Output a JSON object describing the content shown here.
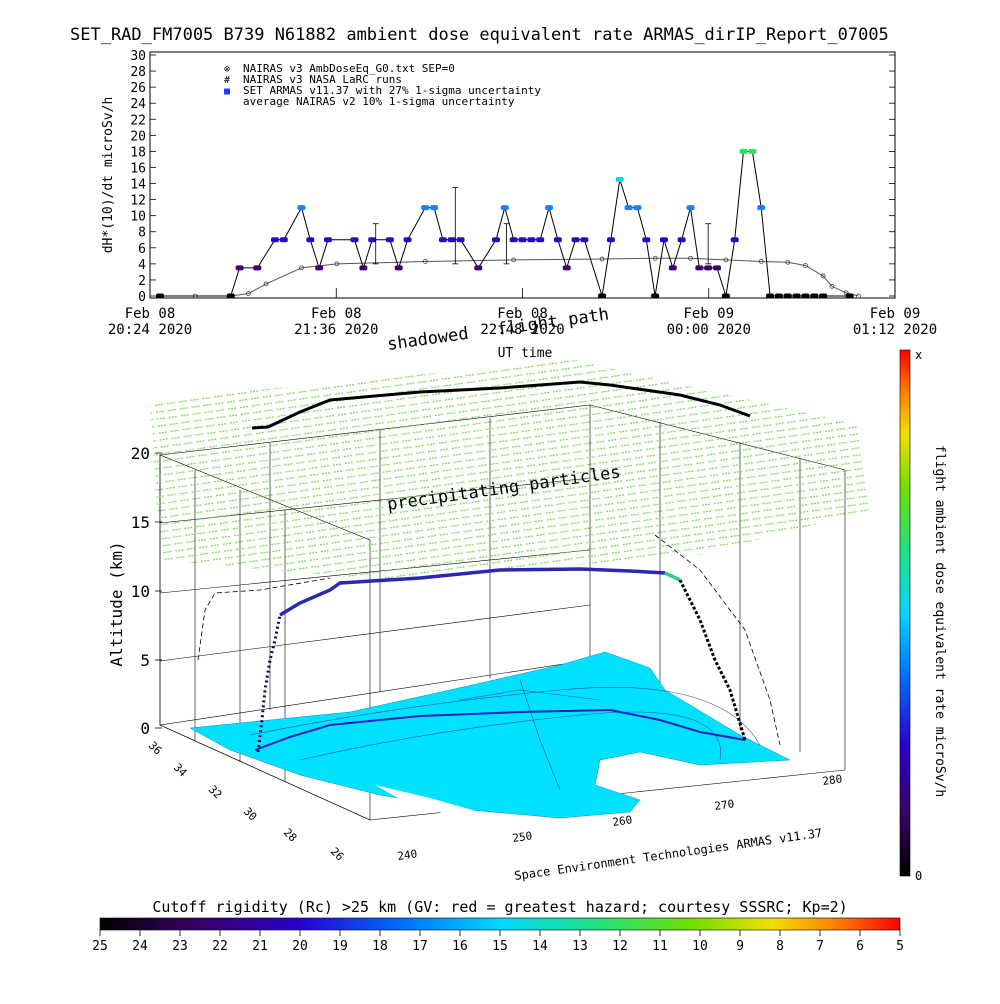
{
  "title": "SET_RAD_FM7005  B739 N61882 ambient dose equivalent rate ARMAS_dirIP_Report_07005",
  "top_chart": {
    "ylabel": "dH*(10)/dt microSv/h",
    "xlabel": "UT time",
    "yticks": [
      "0",
      "2",
      "4",
      "6",
      "8",
      "10",
      "12",
      "14",
      "16",
      "18",
      "20",
      "22",
      "24",
      "26",
      "28",
      "30"
    ],
    "xticks": [
      {
        "date": "Feb 08",
        "time": "20:24 2020"
      },
      {
        "date": "Feb 08",
        "time": "21:36 2020"
      },
      {
        "date": "Feb 08",
        "time": "22:48 2020"
      },
      {
        "date": "Feb 09",
        "time": "00:00 2020"
      },
      {
        "date": "Feb 09",
        "time": "01:12 2020"
      }
    ],
    "legend": [
      {
        "symbol": "⊗",
        "label": "NAIRAS v3 AmbDoseEq_G0.txt SEP=0"
      },
      {
        "symbol": "#",
        "label": "NAIRAS v3 NASA LaRC runs"
      },
      {
        "symbol": "■",
        "label": "SET ARMAS v11.37 with 27% 1-sigma uncertainty",
        "color": "#1a3fff"
      },
      {
        "symbol": "",
        "label": "average NAIRAS v2 10% 1-sigma uncertainty"
      }
    ],
    "chart_data": {
      "type": "line",
      "x_unit": "minutes after Feb 08 20:24 UT",
      "ylim": [
        0,
        30
      ],
      "series": [
        {
          "name": "NAIRAS v3 AmbDoseEq_G0.txt SEP=0",
          "x": [
            0,
            20,
            40,
            50,
            60,
            80,
            100,
            150,
            200,
            250,
            280,
            300,
            320,
            340,
            355,
            365,
            375,
            380,
            388,
            395
          ],
          "values": [
            0,
            0,
            0,
            0.3,
            1.5,
            3.5,
            4.0,
            4.3,
            4.5,
            4.6,
            4.7,
            4.7,
            4.5,
            4.3,
            4.2,
            3.8,
            2.5,
            1.2,
            0.4,
            0
          ]
        },
        {
          "name": "SET ARMAS v11.37 with 27% 1-sigma uncertainty",
          "x": [
            0,
            40,
            45,
            55,
            65,
            70,
            80,
            85,
            90,
            95,
            110,
            115,
            120,
            130,
            135,
            140,
            150,
            155,
            160,
            165,
            170,
            180,
            190,
            195,
            200,
            205,
            210,
            215,
            220,
            225,
            230,
            235,
            240,
            250,
            255,
            260,
            265,
            270,
            275,
            280,
            285,
            290,
            295,
            300,
            305,
            310,
            315,
            320,
            325,
            330,
            335,
            340,
            345,
            350,
            355,
            360,
            365,
            370,
            375,
            390
          ],
          "values": [
            0,
            0,
            3.5,
            3.5,
            7,
            7,
            11,
            7,
            3.5,
            7,
            7,
            3.5,
            7,
            7,
            3.5,
            7,
            11,
            11,
            7,
            7,
            7,
            3.5,
            7,
            11,
            7,
            7,
            7,
            7,
            11,
            7,
            3.5,
            7,
            7,
            0,
            7,
            14.5,
            11,
            11,
            7,
            0,
            7,
            3.5,
            7,
            11,
            3.5,
            3.5,
            3.5,
            0,
            7,
            18,
            18,
            11,
            0,
            0,
            0,
            0,
            0,
            0,
            0,
            0
          ]
        }
      ],
      "error_bars": [
        {
          "x": 167,
          "low": 4.0,
          "high": 13.5
        },
        {
          "x": 122,
          "low": 4.0,
          "high": 9.0
        },
        {
          "x": 196,
          "low": 4.0,
          "high": 9.0
        },
        {
          "x": 310,
          "low": 4.0,
          "high": 9.0
        }
      ]
    }
  },
  "plot3d": {
    "zlabel": "Altitude (km)",
    "zticks": [
      "0",
      "5",
      "10",
      "15",
      "20"
    ],
    "lat_ticks": [
      "36",
      "34",
      "32",
      "30",
      "28",
      "26"
    ],
    "lon_ticks": [
      "240",
      "250",
      "260",
      "270",
      "280"
    ],
    "labels": {
      "flight_path": "flight path",
      "shadowed": "shadowed",
      "precip": "precipitating particles",
      "credit": "Space Environment Technologies ARMAS v11.37"
    }
  },
  "right_colorbar": {
    "label": "flight ambient dose equivalent rate microSv/h",
    "top": "x",
    "bottom": "0"
  },
  "bottom_colorbar": {
    "title": "Cutoff rigidity (Rc) >25 km (GV: red = greatest hazard; courtesy SSSRC; Kp=2)",
    "ticks": [
      "25",
      "24",
      "23",
      "22",
      "21",
      "20",
      "19",
      "18",
      "17",
      "16",
      "15",
      "14",
      "13",
      "12",
      "11",
      "10",
      "9",
      "8",
      "7",
      "6",
      "5"
    ]
  }
}
